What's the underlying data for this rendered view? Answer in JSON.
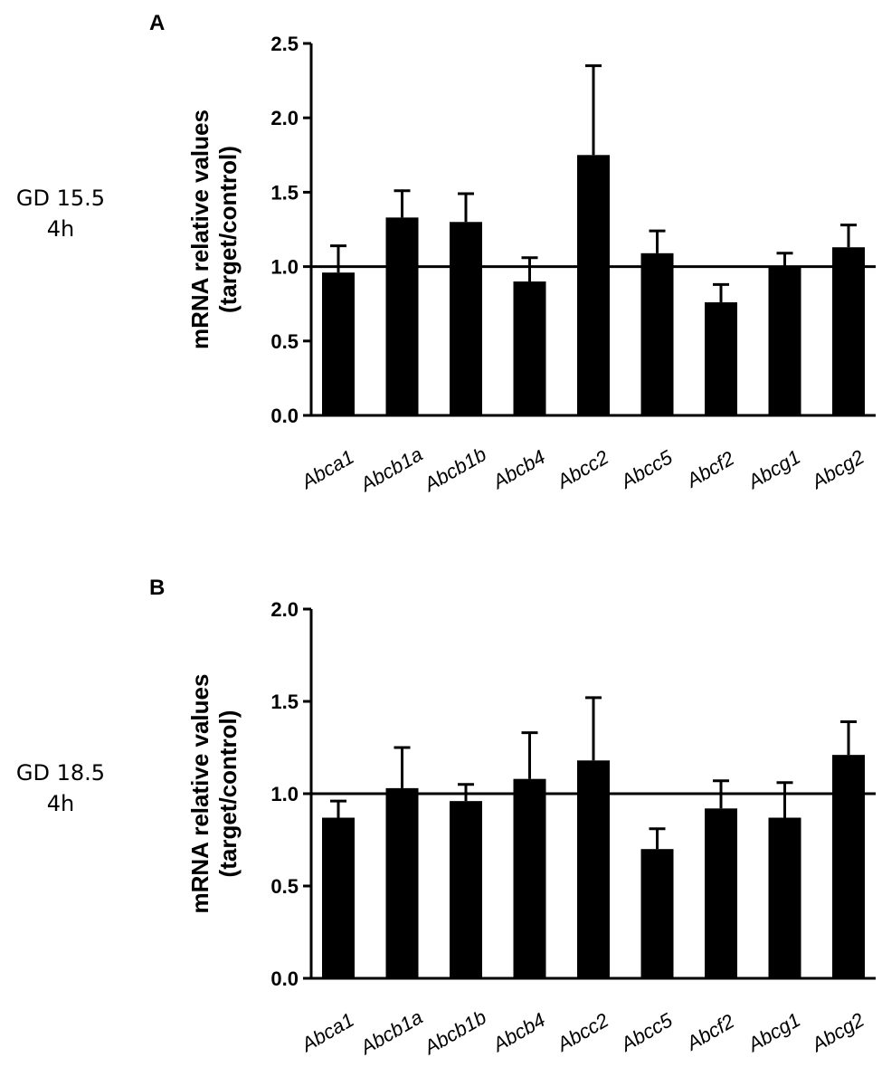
{
  "chart_data": [
    {
      "type": "bar",
      "panel_label": "A",
      "condition": [
        "GD 15.5",
        "4h"
      ],
      "ylabel": [
        "mRNA relative values",
        "(target/control)"
      ],
      "xlabel": "",
      "ylim": [
        0,
        2.5
      ],
      "yticks": [
        0.0,
        0.5,
        1.0,
        1.5,
        2.0,
        2.5
      ],
      "ytick_labels": [
        "0.0",
        "0.5",
        "1.0",
        "1.5",
        "2.0",
        "2.5"
      ],
      "reference_line": 1.0,
      "categories": [
        "Abca1",
        "Abcb1a",
        "Abcb1b",
        "Abcb4",
        "Abcc2",
        "Abcc5",
        "Abcf2",
        "Abcg1",
        "Abcg2"
      ],
      "values": [
        0.96,
        1.33,
        1.3,
        0.9,
        1.75,
        1.09,
        0.76,
        1.0,
        1.13
      ],
      "errors": [
        0.18,
        0.18,
        0.19,
        0.16,
        0.6,
        0.15,
        0.12,
        0.09,
        0.15
      ]
    },
    {
      "type": "bar",
      "panel_label": "B",
      "condition": [
        "GD 18.5",
        "4h"
      ],
      "ylabel": [
        "mRNA relative values",
        "(target/control)"
      ],
      "xlabel": "",
      "ylim": [
        0,
        2.0
      ],
      "yticks": [
        0.0,
        0.5,
        1.0,
        1.5,
        2.0
      ],
      "ytick_labels": [
        "0.0",
        "0.5",
        "1.0",
        "1.5",
        "2.0"
      ],
      "reference_line": 1.0,
      "categories": [
        "Abca1",
        "Abcb1a",
        "Abcb1b",
        "Abcb4",
        "Abcc2",
        "Abcc5",
        "Abcf2",
        "Abcg1",
        "Abcg2"
      ],
      "values": [
        0.87,
        1.03,
        0.96,
        1.08,
        1.18,
        0.7,
        0.92,
        0.87,
        1.21
      ],
      "errors": [
        0.09,
        0.22,
        0.09,
        0.25,
        0.34,
        0.11,
        0.15,
        0.19,
        0.18
      ]
    }
  ]
}
